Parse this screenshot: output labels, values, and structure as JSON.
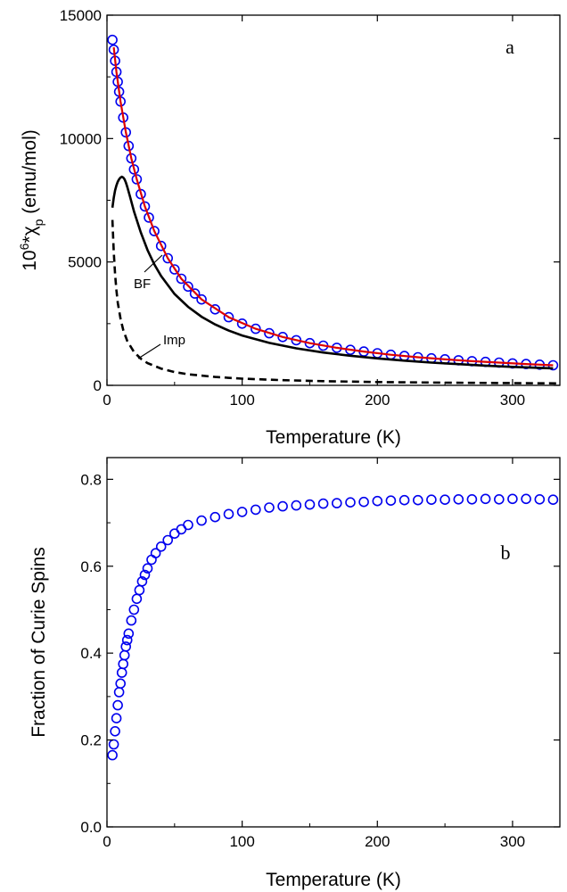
{
  "chart_data": [
    {
      "type": "line",
      "panel_label": "a",
      "xlabel": "Temperature (K)",
      "ylabel_base": "10",
      "ylabel_exp": "6",
      "ylabel_star": "*",
      "ylabel_chi": "χ",
      "ylabel_sub": "p",
      "ylabel_units": " (emu/mol)",
      "xlim": [
        0,
        335
      ],
      "ylim": [
        0,
        15000
      ],
      "xticks": [
        0,
        100,
        200,
        300
      ],
      "yticks": [
        0,
        5000,
        10000,
        15000
      ],
      "xtick_labels": [
        "0",
        "100",
        "200",
        "300"
      ],
      "ytick_labels": [
        "0",
        "5000",
        "10000",
        "15000"
      ],
      "series": [
        {
          "name": "data",
          "style": "open-circles",
          "color": "#0000ee",
          "x": [
            4,
            5,
            6,
            7,
            8,
            9,
            10,
            12,
            14,
            16,
            18,
            20,
            22,
            25,
            28,
            31,
            35,
            40,
            45,
            50,
            55,
            60,
            65,
            70,
            80,
            90,
            100,
            110,
            120,
            130,
            140,
            150,
            160,
            170,
            180,
            190,
            200,
            210,
            220,
            230,
            240,
            250,
            260,
            270,
            280,
            290,
            300,
            310,
            320,
            330
          ],
          "y": [
            14000,
            13600,
            13150,
            12700,
            12300,
            11900,
            11500,
            10850,
            10250,
            9700,
            9200,
            8750,
            8350,
            7750,
            7250,
            6800,
            6250,
            5650,
            5150,
            4700,
            4320,
            4000,
            3720,
            3480,
            3080,
            2760,
            2500,
            2290,
            2110,
            1960,
            1830,
            1710,
            1610,
            1520,
            1440,
            1370,
            1300,
            1240,
            1190,
            1140,
            1095,
            1055,
            1015,
            980,
            950,
            920,
            890,
            865,
            840,
            815
          ]
        },
        {
          "name": "fit",
          "style": "solid",
          "color": "#dd0000",
          "x": [
            5,
            7,
            10,
            14,
            18,
            22,
            28,
            35,
            45,
            55,
            70,
            90,
            110,
            130,
            150,
            170,
            190,
            210,
            230,
            250,
            270,
            290,
            310,
            330
          ],
          "y": [
            13700,
            12700,
            11500,
            10250,
            9200,
            8350,
            7250,
            6250,
            5150,
            4320,
            3480,
            2760,
            2290,
            1960,
            1710,
            1520,
            1370,
            1240,
            1140,
            1055,
            980,
            920,
            865,
            815
          ]
        },
        {
          "name": "BF",
          "style": "solid",
          "color": "#000000",
          "x": [
            4,
            5,
            6,
            7,
            8,
            9,
            10,
            11,
            12,
            13,
            14,
            15,
            17,
            20,
            25,
            30,
            35,
            40,
            50,
            60,
            70,
            80,
            90,
            100,
            120,
            140,
            160,
            180,
            200,
            220,
            240,
            260,
            280,
            300,
            320,
            330
          ],
          "y": [
            7200,
            7600,
            7900,
            8100,
            8250,
            8350,
            8420,
            8450,
            8420,
            8350,
            8220,
            8050,
            7650,
            7050,
            6200,
            5480,
            4900,
            4430,
            3700,
            3180,
            2780,
            2470,
            2220,
            2020,
            1720,
            1500,
            1330,
            1200,
            1090,
            1000,
            920,
            860,
            800,
            750,
            710,
            690
          ]
        },
        {
          "name": "Imp",
          "style": "dashed",
          "color": "#000000",
          "x": [
            4,
            5,
            6,
            7,
            8,
            10,
            12,
            15,
            20,
            25,
            30,
            40,
            50,
            60,
            80,
            100,
            130,
            160,
            200,
            250,
            300,
            335
          ],
          "y": [
            6700,
            5400,
            4500,
            3850,
            3350,
            2700,
            2250,
            1800,
            1350,
            1080,
            900,
            680,
            540,
            450,
            340,
            270,
            210,
            170,
            135,
            110,
            90,
            80
          ]
        }
      ],
      "annotations": [
        {
          "text": "BF",
          "x": 38,
          "y": 4200
        },
        {
          "text": "Imp",
          "x": 72,
          "y": 1700
        }
      ]
    },
    {
      "type": "scatter",
      "panel_label": "b",
      "xlabel": "Temperature (K)",
      "ylabel": "Fraction of Curie Spins",
      "xlim": [
        0,
        335
      ],
      "ylim": [
        0,
        0.85
      ],
      "xticks": [
        0,
        100,
        200,
        300
      ],
      "yticks": [
        0.0,
        0.2,
        0.4,
        0.6,
        0.8
      ],
      "xtick_labels": [
        "0",
        "100",
        "200",
        "300"
      ],
      "ytick_labels": [
        "0.0",
        "0.2",
        "0.4",
        "0.6",
        "0.8"
      ],
      "series": [
        {
          "name": "fraction",
          "style": "open-circles",
          "color": "#0000ee",
          "x": [
            4,
            5,
            6,
            7,
            8,
            9,
            10,
            11,
            12,
            13,
            14,
            15,
            16,
            18,
            20,
            22,
            24,
            26,
            28,
            30,
            33,
            36,
            40,
            45,
            50,
            55,
            60,
            70,
            80,
            90,
            100,
            110,
            120,
            130,
            140,
            150,
            160,
            170,
            180,
            190,
            200,
            210,
            220,
            230,
            240,
            250,
            260,
            270,
            280,
            290,
            300,
            310,
            320,
            330
          ],
          "y": [
            0.165,
            0.19,
            0.22,
            0.25,
            0.28,
            0.31,
            0.33,
            0.355,
            0.375,
            0.395,
            0.415,
            0.43,
            0.445,
            0.475,
            0.5,
            0.525,
            0.545,
            0.565,
            0.58,
            0.595,
            0.615,
            0.63,
            0.645,
            0.66,
            0.675,
            0.685,
            0.695,
            0.705,
            0.713,
            0.72,
            0.725,
            0.73,
            0.735,
            0.738,
            0.74,
            0.742,
            0.744,
            0.745,
            0.747,
            0.748,
            0.75,
            0.751,
            0.752,
            0.752,
            0.753,
            0.753,
            0.754,
            0.754,
            0.755,
            0.754,
            0.755,
            0.755,
            0.754,
            0.753
          ]
        }
      ]
    }
  ]
}
